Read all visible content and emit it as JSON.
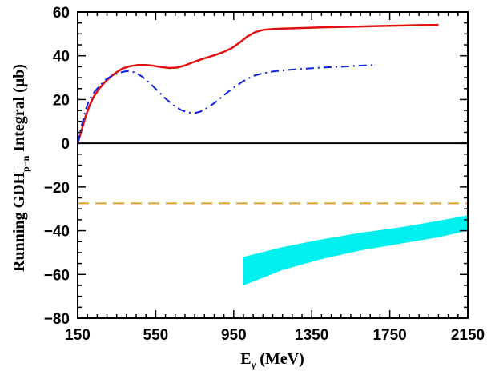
{
  "chart_data": {
    "type": "line",
    "title": "",
    "xlabel": {
      "main": "E",
      "sub": "γ",
      "rest": " (MeV)"
    },
    "ylabel": {
      "pre": "Running GDH",
      "sub": "p−n",
      "post": " Integral (μb)"
    },
    "xlim": [
      150,
      2150
    ],
    "ylim": [
      -80,
      60
    ],
    "xticks": [
      150,
      550,
      950,
      1350,
      1750,
      2150
    ],
    "xtick_labels": [
      "150",
      "550",
      "950",
      "1350",
      "1750",
      "2150"
    ],
    "yticks": [
      -80,
      -60,
      -40,
      -20,
      0,
      20,
      40,
      60
    ],
    "ytick_labels": [
      "−80",
      "−60",
      "−40",
      "−20",
      "0",
      "20",
      "40",
      "60"
    ],
    "grid": false,
    "legend": null,
    "series": [
      {
        "style": "solid",
        "color": "#e01010",
        "x": [
          150,
          170,
          190,
          210,
          230,
          260,
          290,
          320,
          350,
          380,
          420,
          460,
          500,
          540,
          580,
          620,
          660,
          700,
          740,
          780,
          820,
          860,
          900,
          940,
          980,
          1020,
          1060,
          1100,
          1150,
          1200,
          1300,
          1400,
          1500,
          1600,
          1700,
          1800,
          1900,
          2000
        ],
        "y": [
          0,
          6,
          12,
          17,
          21,
          25,
          28,
          30.5,
          32.5,
          34.2,
          35.3,
          35.8,
          35.8,
          35.4,
          34.8,
          34.4,
          34.6,
          35.6,
          37.0,
          38.3,
          39.4,
          40.5,
          41.8,
          43.5,
          46.0,
          48.8,
          50.8,
          51.8,
          52.2,
          52.4,
          52.7,
          53.0,
          53.2,
          53.4,
          53.6,
          53.8,
          54.0,
          54.1
        ]
      },
      {
        "style": "dashdot",
        "color": "#1020e0",
        "x": [
          150,
          170,
          190,
          210,
          240,
          270,
          300,
          330,
          360,
          400,
          440,
          480,
          520,
          560,
          600,
          640,
          680,
          720,
          750,
          780,
          820,
          860,
          900,
          950,
          1000,
          1050,
          1100,
          1150,
          1200,
          1300,
          1400,
          1500,
          1600,
          1680
        ],
        "y": [
          0,
          8,
          15,
          20,
          24,
          27,
          29.5,
          31,
          32.2,
          33.0,
          32.5,
          30.5,
          27.5,
          24,
          20.5,
          17.5,
          15.2,
          14.0,
          13.8,
          14.5,
          16.5,
          19.0,
          22.0,
          25.5,
          28.5,
          30.8,
          32.0,
          32.8,
          33.3,
          34.0,
          34.6,
          35.0,
          35.5,
          35.8
        ]
      },
      {
        "style": "dashed",
        "color": "#e0a030",
        "x": [
          150,
          2150
        ],
        "y": [
          -27.5,
          -27.5
        ]
      }
    ],
    "bands": [
      {
        "color": "#00f0f0",
        "x": [
          1000,
          1200,
          1400,
          1600,
          1800,
          2000,
          2150
        ],
        "upper": [
          -52,
          -47.5,
          -44,
          -41,
          -38.5,
          -35.5,
          -33
        ],
        "lower": [
          -65,
          -58,
          -53,
          -49,
          -46,
          -43,
          -40
        ]
      }
    ],
    "reference_lines": [
      {
        "y": 0,
        "color": "#000000"
      }
    ]
  }
}
